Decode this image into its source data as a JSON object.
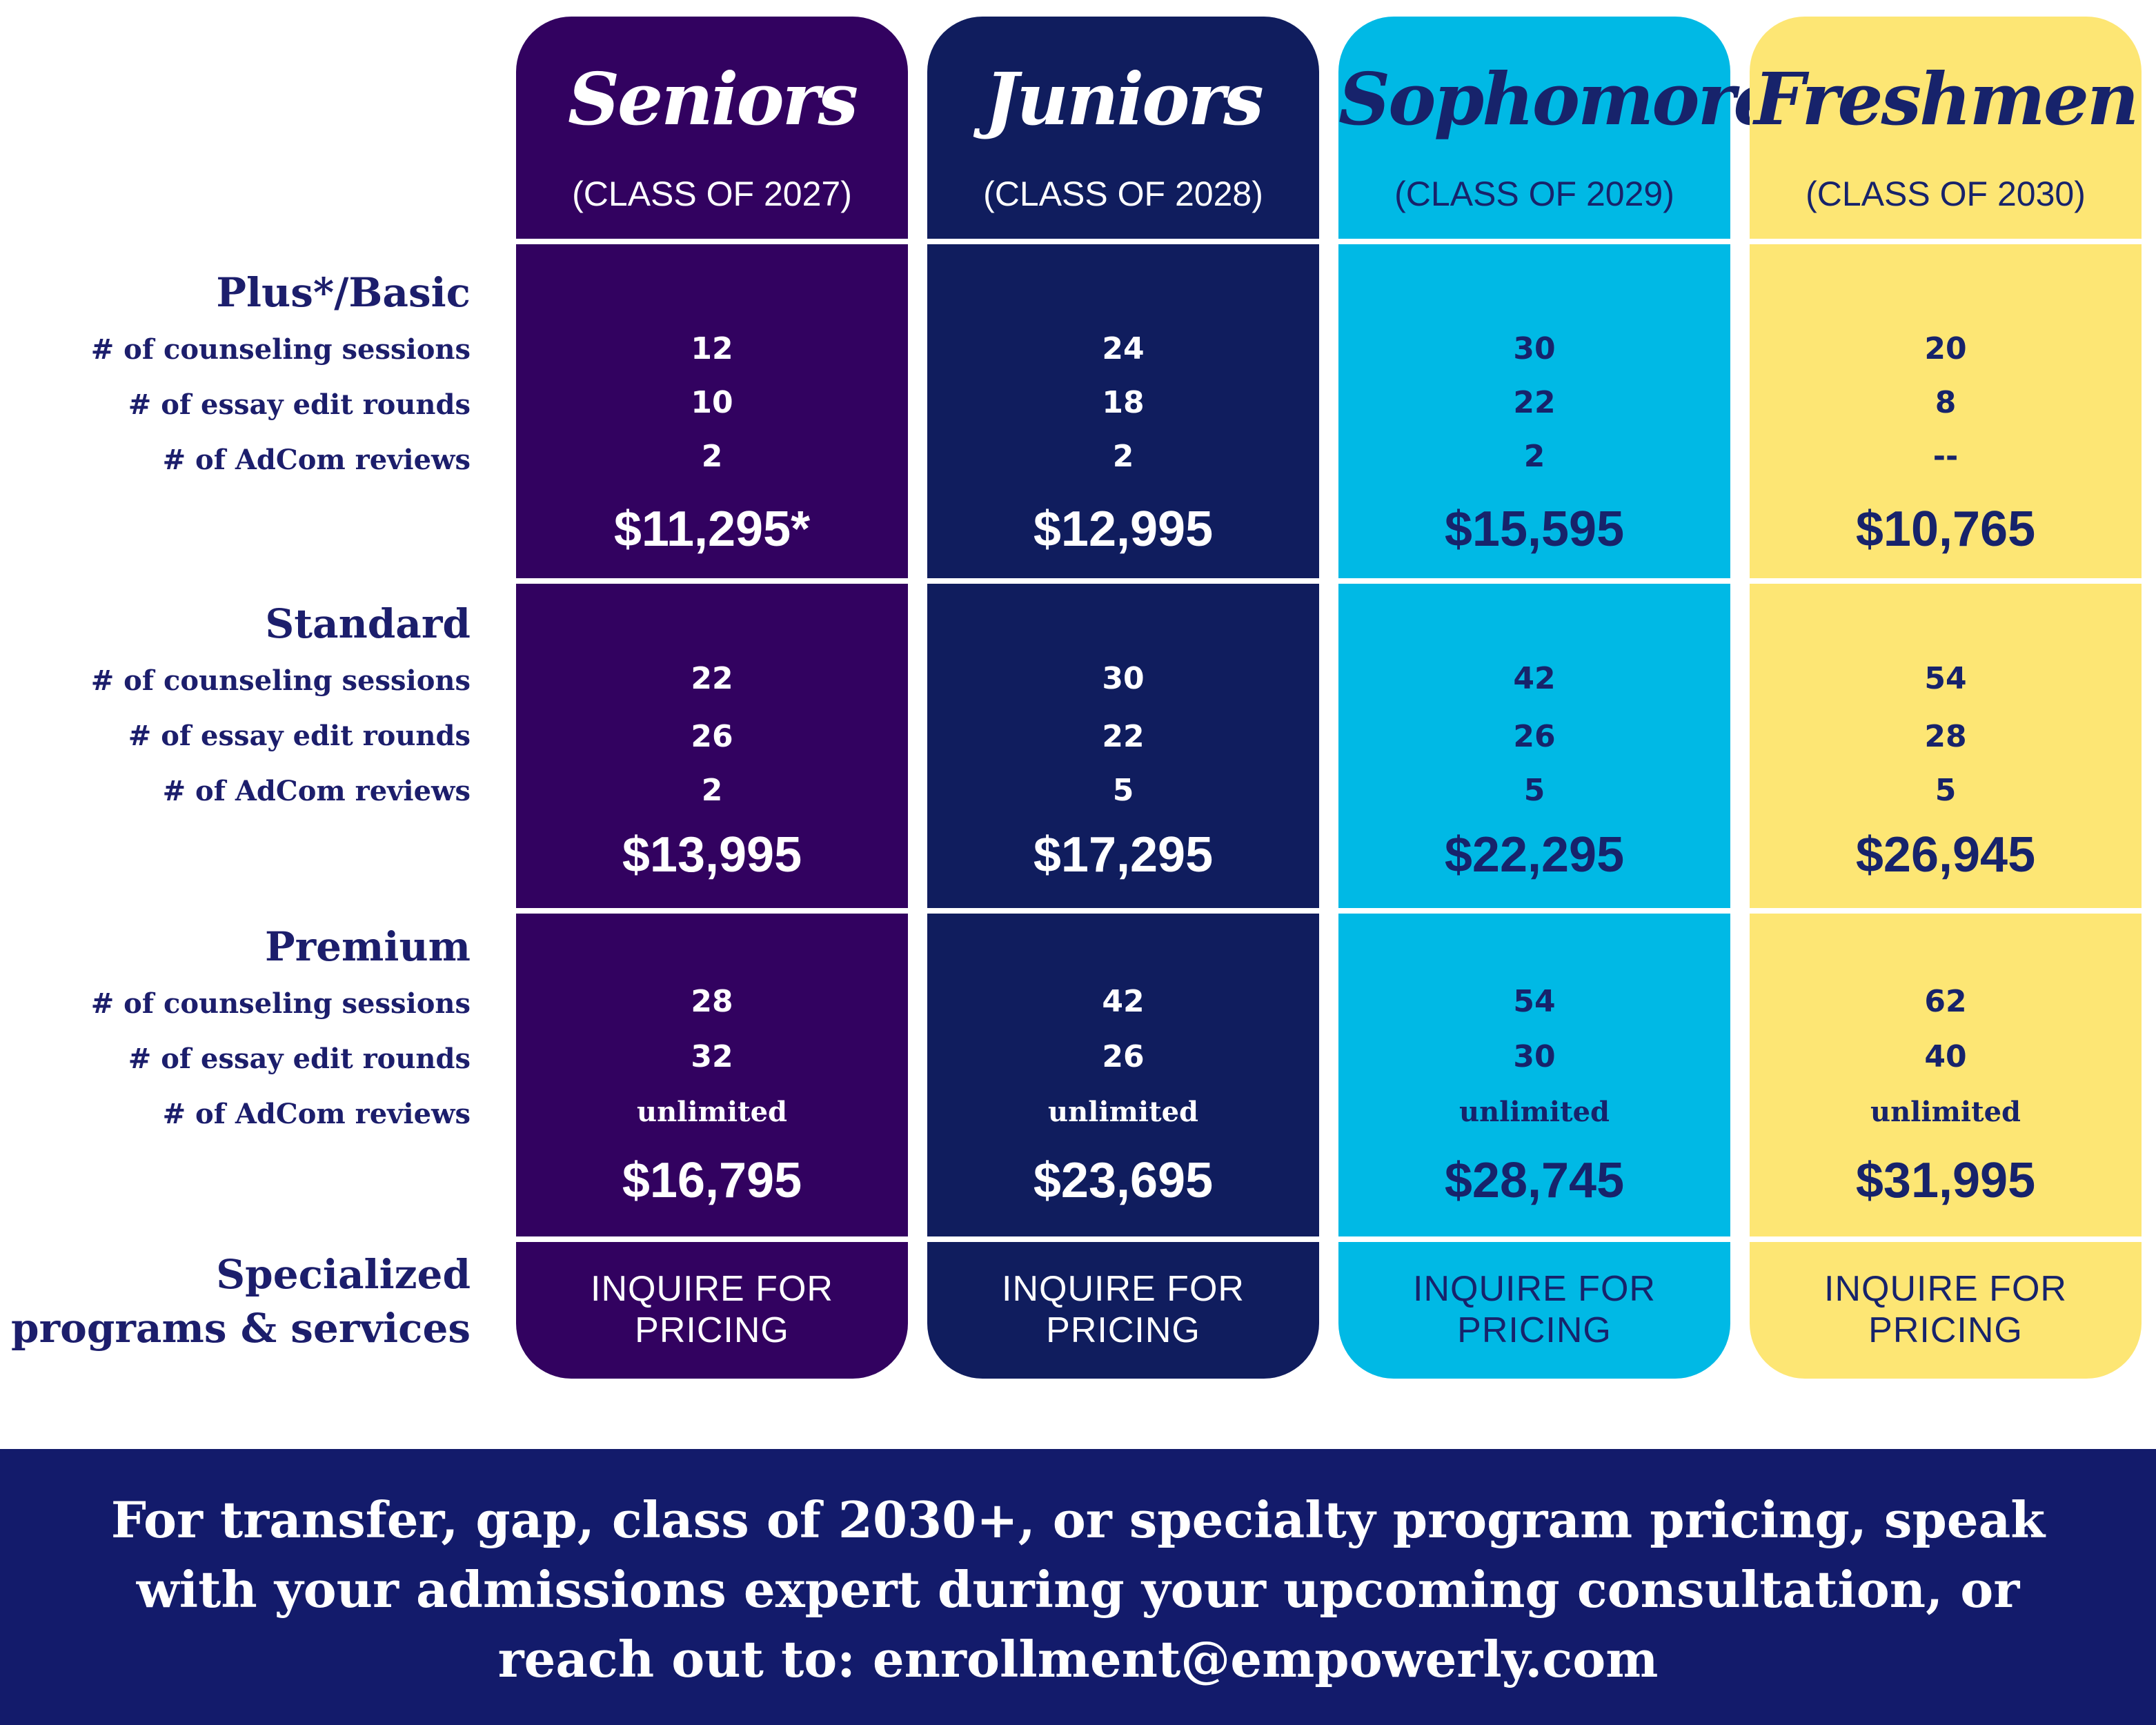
{
  "tiers": {
    "basic": {
      "name": "Plus*/Basic",
      "rows": [
        "# of counseling sessions",
        "# of essay edit rounds",
        "# of AdCom reviews"
      ]
    },
    "standard": {
      "name": "Standard",
      "rows": [
        "# of counseling sessions",
        "# of essay edit rounds",
        "# of AdCom reviews"
      ]
    },
    "premium": {
      "name": "Premium",
      "rows": [
        "# of counseling sessions",
        "# of essay edit rounds",
        "# of AdCom reviews"
      ]
    },
    "specialized": {
      "line1": "Specialized",
      "line2": "programs & services"
    }
  },
  "columns": [
    {
      "title": "Seniors",
      "subtitle": "(CLASS OF 2027)",
      "color": "#320260",
      "text_color": "#ffffff",
      "basic": {
        "sessions": "12",
        "edits": "10",
        "reviews": "2",
        "price": "$11,295*"
      },
      "standard": {
        "sessions": "22",
        "edits": "26",
        "reviews": "2",
        "price": "$13,995"
      },
      "premium": {
        "sessions": "28",
        "edits": "32",
        "reviews": "unlimited",
        "price": "$16,795"
      },
      "inquire": [
        "INQUIRE FOR",
        "PRICING"
      ]
    },
    {
      "title": "Juniors",
      "subtitle": "(CLASS OF 2028)",
      "color": "#101d5e",
      "text_color": "#ffffff",
      "basic": {
        "sessions": "24",
        "edits": "18",
        "reviews": "2",
        "price": "$12,995"
      },
      "standard": {
        "sessions": "30",
        "edits": "22",
        "reviews": "5",
        "price": "$17,295"
      },
      "premium": {
        "sessions": "42",
        "edits": "26",
        "reviews": "unlimited",
        "price": "$23,695"
      },
      "inquire": [
        "INQUIRE FOR",
        "PRICING"
      ]
    },
    {
      "title": "Sophomores",
      "subtitle": "(CLASS OF 2029)",
      "color": "#00b9e5",
      "text_color": "#17236b",
      "basic": {
        "sessions": "30",
        "edits": "22",
        "reviews": "2",
        "price": "$15,595"
      },
      "standard": {
        "sessions": "42",
        "edits": "26",
        "reviews": "5",
        "price": "$22,295"
      },
      "premium": {
        "sessions": "54",
        "edits": "30",
        "reviews": "unlimited",
        "price": "$28,745"
      },
      "inquire": [
        "INQUIRE FOR",
        "PRICING"
      ]
    },
    {
      "title": "Freshmen",
      "subtitle": "(CLASS OF 2030)",
      "color": "#fde674",
      "text_color": "#17236b",
      "basic": {
        "sessions": "20",
        "edits": "8",
        "reviews": "--",
        "price": "$10,765"
      },
      "standard": {
        "sessions": "54",
        "edits": "28",
        "reviews": "5",
        "price": "$26,945"
      },
      "premium": {
        "sessions": "62",
        "edits": "40",
        "reviews": "unlimited",
        "price": "$31,995"
      },
      "inquire": [
        "INQUIRE FOR",
        "PRICING"
      ]
    }
  ],
  "footer": {
    "line1": "For transfer, gap,  class of 2030+, or specialty program pricing, speak",
    "line2": "with your admissions expert during your upcoming consultation, or",
    "line3": "reach out to:  enrollment@empowerly.com"
  }
}
